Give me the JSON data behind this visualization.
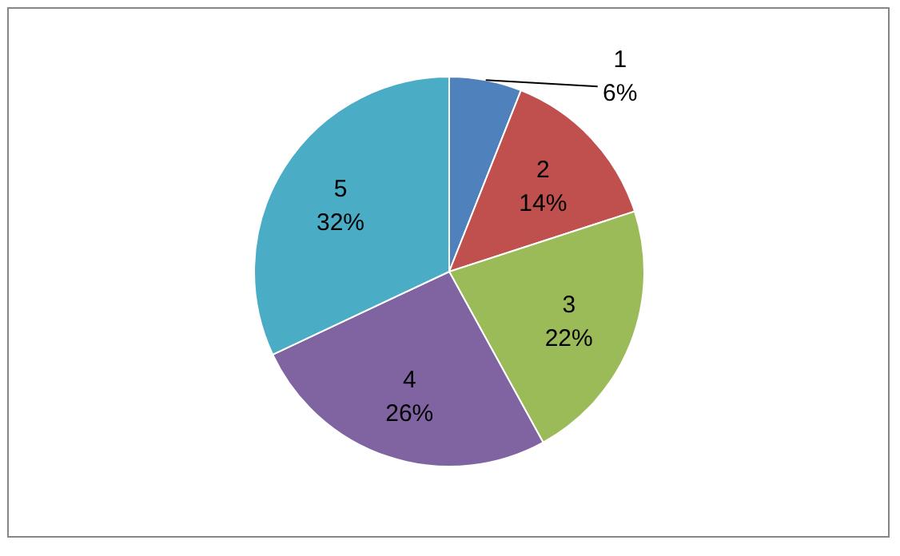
{
  "chart_data": {
    "type": "pie",
    "categories": [
      "1",
      "2",
      "3",
      "4",
      "5"
    ],
    "values": [
      6,
      14,
      22,
      26,
      32
    ],
    "colors": [
      "#4f81bd",
      "#c0504d",
      "#9bbb59",
      "#8064a2",
      "#4bacc6"
    ],
    "value_labels": [
      "6%",
      "14%",
      "22%",
      "26%",
      "32%"
    ]
  }
}
